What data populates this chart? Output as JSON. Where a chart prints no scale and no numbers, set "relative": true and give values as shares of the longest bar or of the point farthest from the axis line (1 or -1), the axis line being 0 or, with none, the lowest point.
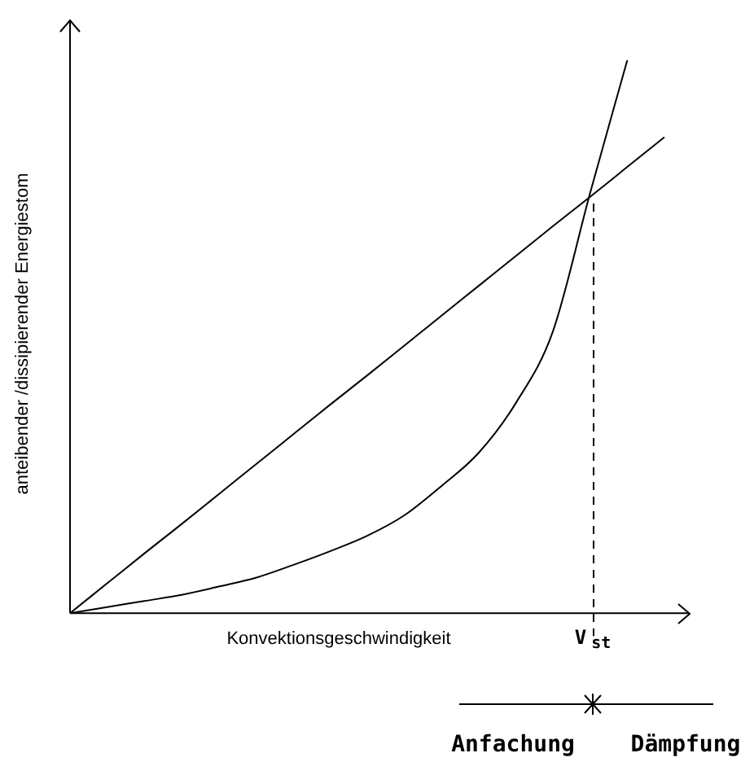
{
  "chart_data": {
    "type": "line",
    "relative": true,
    "xlabel": "Konvektionsgeschwindigkeit",
    "ylabel": "anteibender /dissipierender Energiestom",
    "categories": [
      null,
      null,
      null,
      null,
      null,
      null,
      null,
      null,
      null,
      null,
      null,
      null,
      null,
      null,
      null,
      null,
      null
    ],
    "series": [
      {
        "color": "#000000",
        "values": [
          0,
          0.054,
          0.108,
          0.161,
          0.215,
          0.269,
          0.323,
          0.377,
          0.43,
          0.484,
          0.538,
          0.592,
          0.646,
          0.7,
          0.753,
          0.807,
          0.861
        ]
      },
      {
        "color": "#000000",
        "values": [
          0,
          0.011,
          0.022,
          0.033,
          0.048,
          0.064,
          0.087,
          0.112,
          0.14,
          0.177,
          0.23,
          0.29,
          0.38,
          0.51,
          0.76,
          1,
          null
        ]
      }
    ],
    "annotations": [
      "V$_{st}$",
      "Anfachung",
      "Dämpfung"
    ],
    "marker": "none",
    "line_style": "solid",
    "grid": false,
    "legend": false
  }
}
